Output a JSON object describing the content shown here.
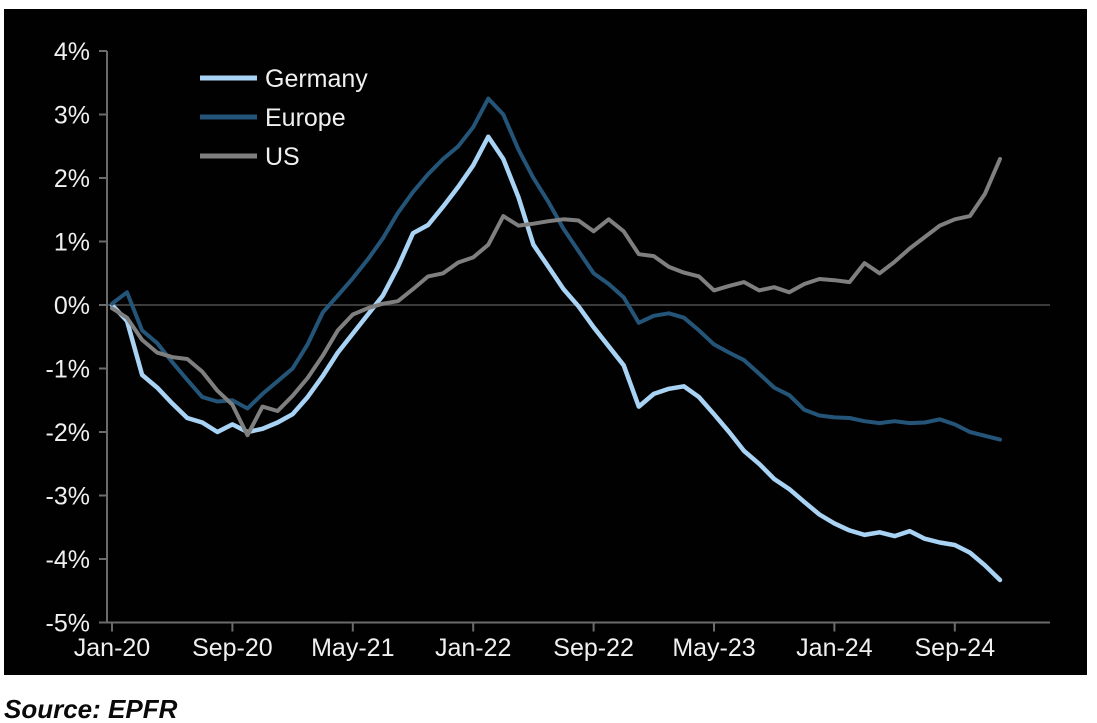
{
  "source_note": "Source: EPFR",
  "colors": {
    "page_background": "#ffffff",
    "chart_background": "#010101",
    "axis_line": "#6b6b6b",
    "zero_gridline": "#4f4f4f",
    "tick_label": "#f0f0f0",
    "germany": "#a9d3f4",
    "europe": "#245578",
    "us": "#7f7f7f"
  },
  "chart_data": {
    "type": "line",
    "unit": "percent",
    "frequency": "monthly",
    "x_range": [
      "Jan-20",
      "Dec-24"
    ],
    "n_points": 60,
    "ylim": [
      -5,
      4
    ],
    "grid": "horizontal line at 0% only",
    "legend_position": "top-left inside plot",
    "y_ticks": [
      {
        "label": "4%",
        "value": 4
      },
      {
        "label": "3%",
        "value": 3
      },
      {
        "label": "2%",
        "value": 2
      },
      {
        "label": "1%",
        "value": 1
      },
      {
        "label": "0%",
        "value": 0
      },
      {
        "label": "-1%",
        "value": -1
      },
      {
        "label": "-2%",
        "value": -2
      },
      {
        "label": "-3%",
        "value": -3
      },
      {
        "label": "-4%",
        "value": -4
      },
      {
        "label": "-5%",
        "value": -5
      }
    ],
    "x_ticks": [
      {
        "label": "Jan-20",
        "index": 0
      },
      {
        "label": "Sep-20",
        "index": 8
      },
      {
        "label": "May-21",
        "index": 16
      },
      {
        "label": "Jan-22",
        "index": 24
      },
      {
        "label": "Sep-22",
        "index": 32
      },
      {
        "label": "May-23",
        "index": 40
      },
      {
        "label": "Jan-24",
        "index": 48
      },
      {
        "label": "Sep-24",
        "index": 56
      }
    ],
    "series": [
      {
        "name": "Germany",
        "color": "#a9d3f4",
        "stroke_width": 4.5,
        "values": [
          0.0,
          -0.25,
          -1.1,
          -1.3,
          -1.55,
          -1.78,
          -1.85,
          -2.0,
          -1.88,
          -2.0,
          -1.95,
          -1.85,
          -1.72,
          -1.45,
          -1.12,
          -0.75,
          -0.45,
          -0.15,
          0.15,
          0.6,
          1.13,
          1.26,
          1.55,
          1.86,
          2.2,
          2.65,
          2.3,
          1.7,
          0.95,
          0.6,
          0.25,
          -0.02,
          -0.35,
          -0.65,
          -0.95,
          -1.6,
          -1.4,
          -1.32,
          -1.28,
          -1.45,
          -1.72,
          -2.0,
          -2.3,
          -2.5,
          -2.74,
          -2.9,
          -3.1,
          -3.3,
          -3.44,
          -3.55,
          -3.62,
          -3.58,
          -3.64,
          -3.56,
          -3.68,
          -3.74,
          -3.78,
          -3.9,
          -4.1,
          -4.33
        ]
      },
      {
        "name": "Europe",
        "color": "#245578",
        "stroke_width": 4,
        "values": [
          0.02,
          0.2,
          -0.4,
          -0.6,
          -0.9,
          -1.18,
          -1.45,
          -1.52,
          -1.5,
          -1.63,
          -1.4,
          -1.2,
          -1.0,
          -0.62,
          -0.12,
          0.15,
          0.42,
          0.72,
          1.05,
          1.45,
          1.78,
          2.06,
          2.3,
          2.5,
          2.8,
          3.25,
          3.0,
          2.45,
          2.0,
          1.62,
          1.2,
          0.85,
          0.5,
          0.33,
          0.12,
          -0.28,
          -0.17,
          -0.13,
          -0.2,
          -0.4,
          -0.62,
          -0.75,
          -0.87,
          -1.08,
          -1.3,
          -1.42,
          -1.65,
          -1.74,
          -1.77,
          -1.78,
          -1.83,
          -1.86,
          -1.83,
          -1.86,
          -1.85,
          -1.8,
          -1.88,
          -2.0,
          -2.06,
          -2.12
        ]
      },
      {
        "name": "US",
        "color": "#7f7f7f",
        "stroke_width": 4,
        "values": [
          -0.05,
          -0.2,
          -0.55,
          -0.75,
          -0.82,
          -0.85,
          -1.05,
          -1.35,
          -1.57,
          -2.05,
          -1.6,
          -1.67,
          -1.43,
          -1.15,
          -0.8,
          -0.4,
          -0.15,
          -0.05,
          0.02,
          0.06,
          0.25,
          0.45,
          0.5,
          0.67,
          0.75,
          0.95,
          1.4,
          1.25,
          1.28,
          1.32,
          1.35,
          1.33,
          1.16,
          1.35,
          1.16,
          0.8,
          0.77,
          0.6,
          0.51,
          0.45,
          0.23,
          0.3,
          0.36,
          0.23,
          0.28,
          0.2,
          0.33,
          0.41,
          0.39,
          0.36,
          0.66,
          0.5,
          0.68,
          0.89,
          1.07,
          1.25,
          1.35,
          1.4,
          1.75,
          2.3
        ]
      }
    ]
  }
}
